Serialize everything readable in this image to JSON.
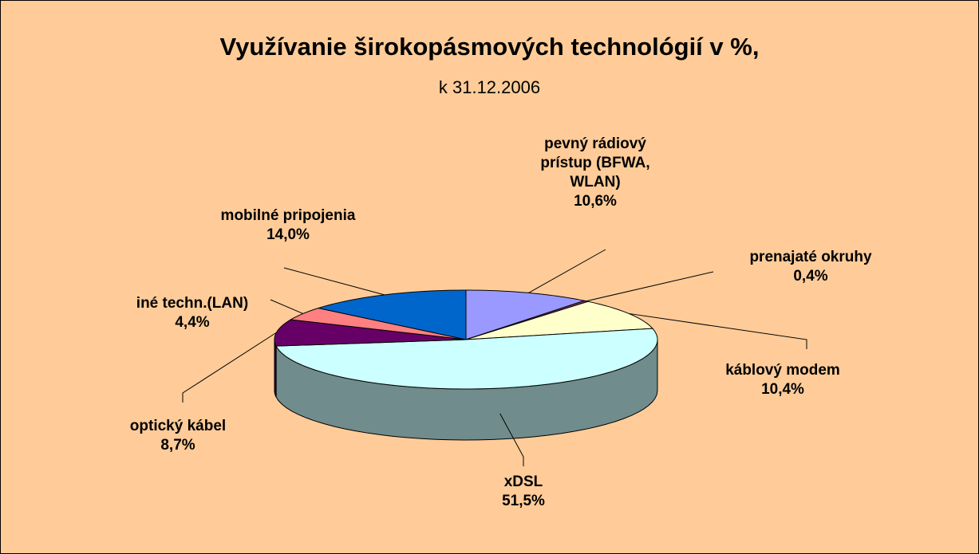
{
  "chart_data": {
    "type": "pie",
    "title": "Využívanie širokopásmových technológií v %,",
    "subtitle": "k 31.12.2006",
    "categories": [
      "pevný rádiový prístup (BFWA, WLAN)",
      "prenajaté okruhy",
      "káblový modem",
      "xDSL",
      "optický kábel",
      "iné techn.(LAN)",
      "mobilné pripojenia"
    ],
    "values": [
      10.6,
      0.4,
      10.4,
      51.5,
      8.7,
      4.4,
      14.0
    ],
    "value_labels": [
      "10,6%",
      "0,4%",
      "10,4%",
      "51,5%",
      "8,7%",
      "4,4%",
      "14,0%"
    ],
    "colors": [
      "#9999ff",
      "#993366",
      "#ffffcc",
      "#ccffff",
      "#660066",
      "#ff8080",
      "#0066cc"
    ]
  }
}
